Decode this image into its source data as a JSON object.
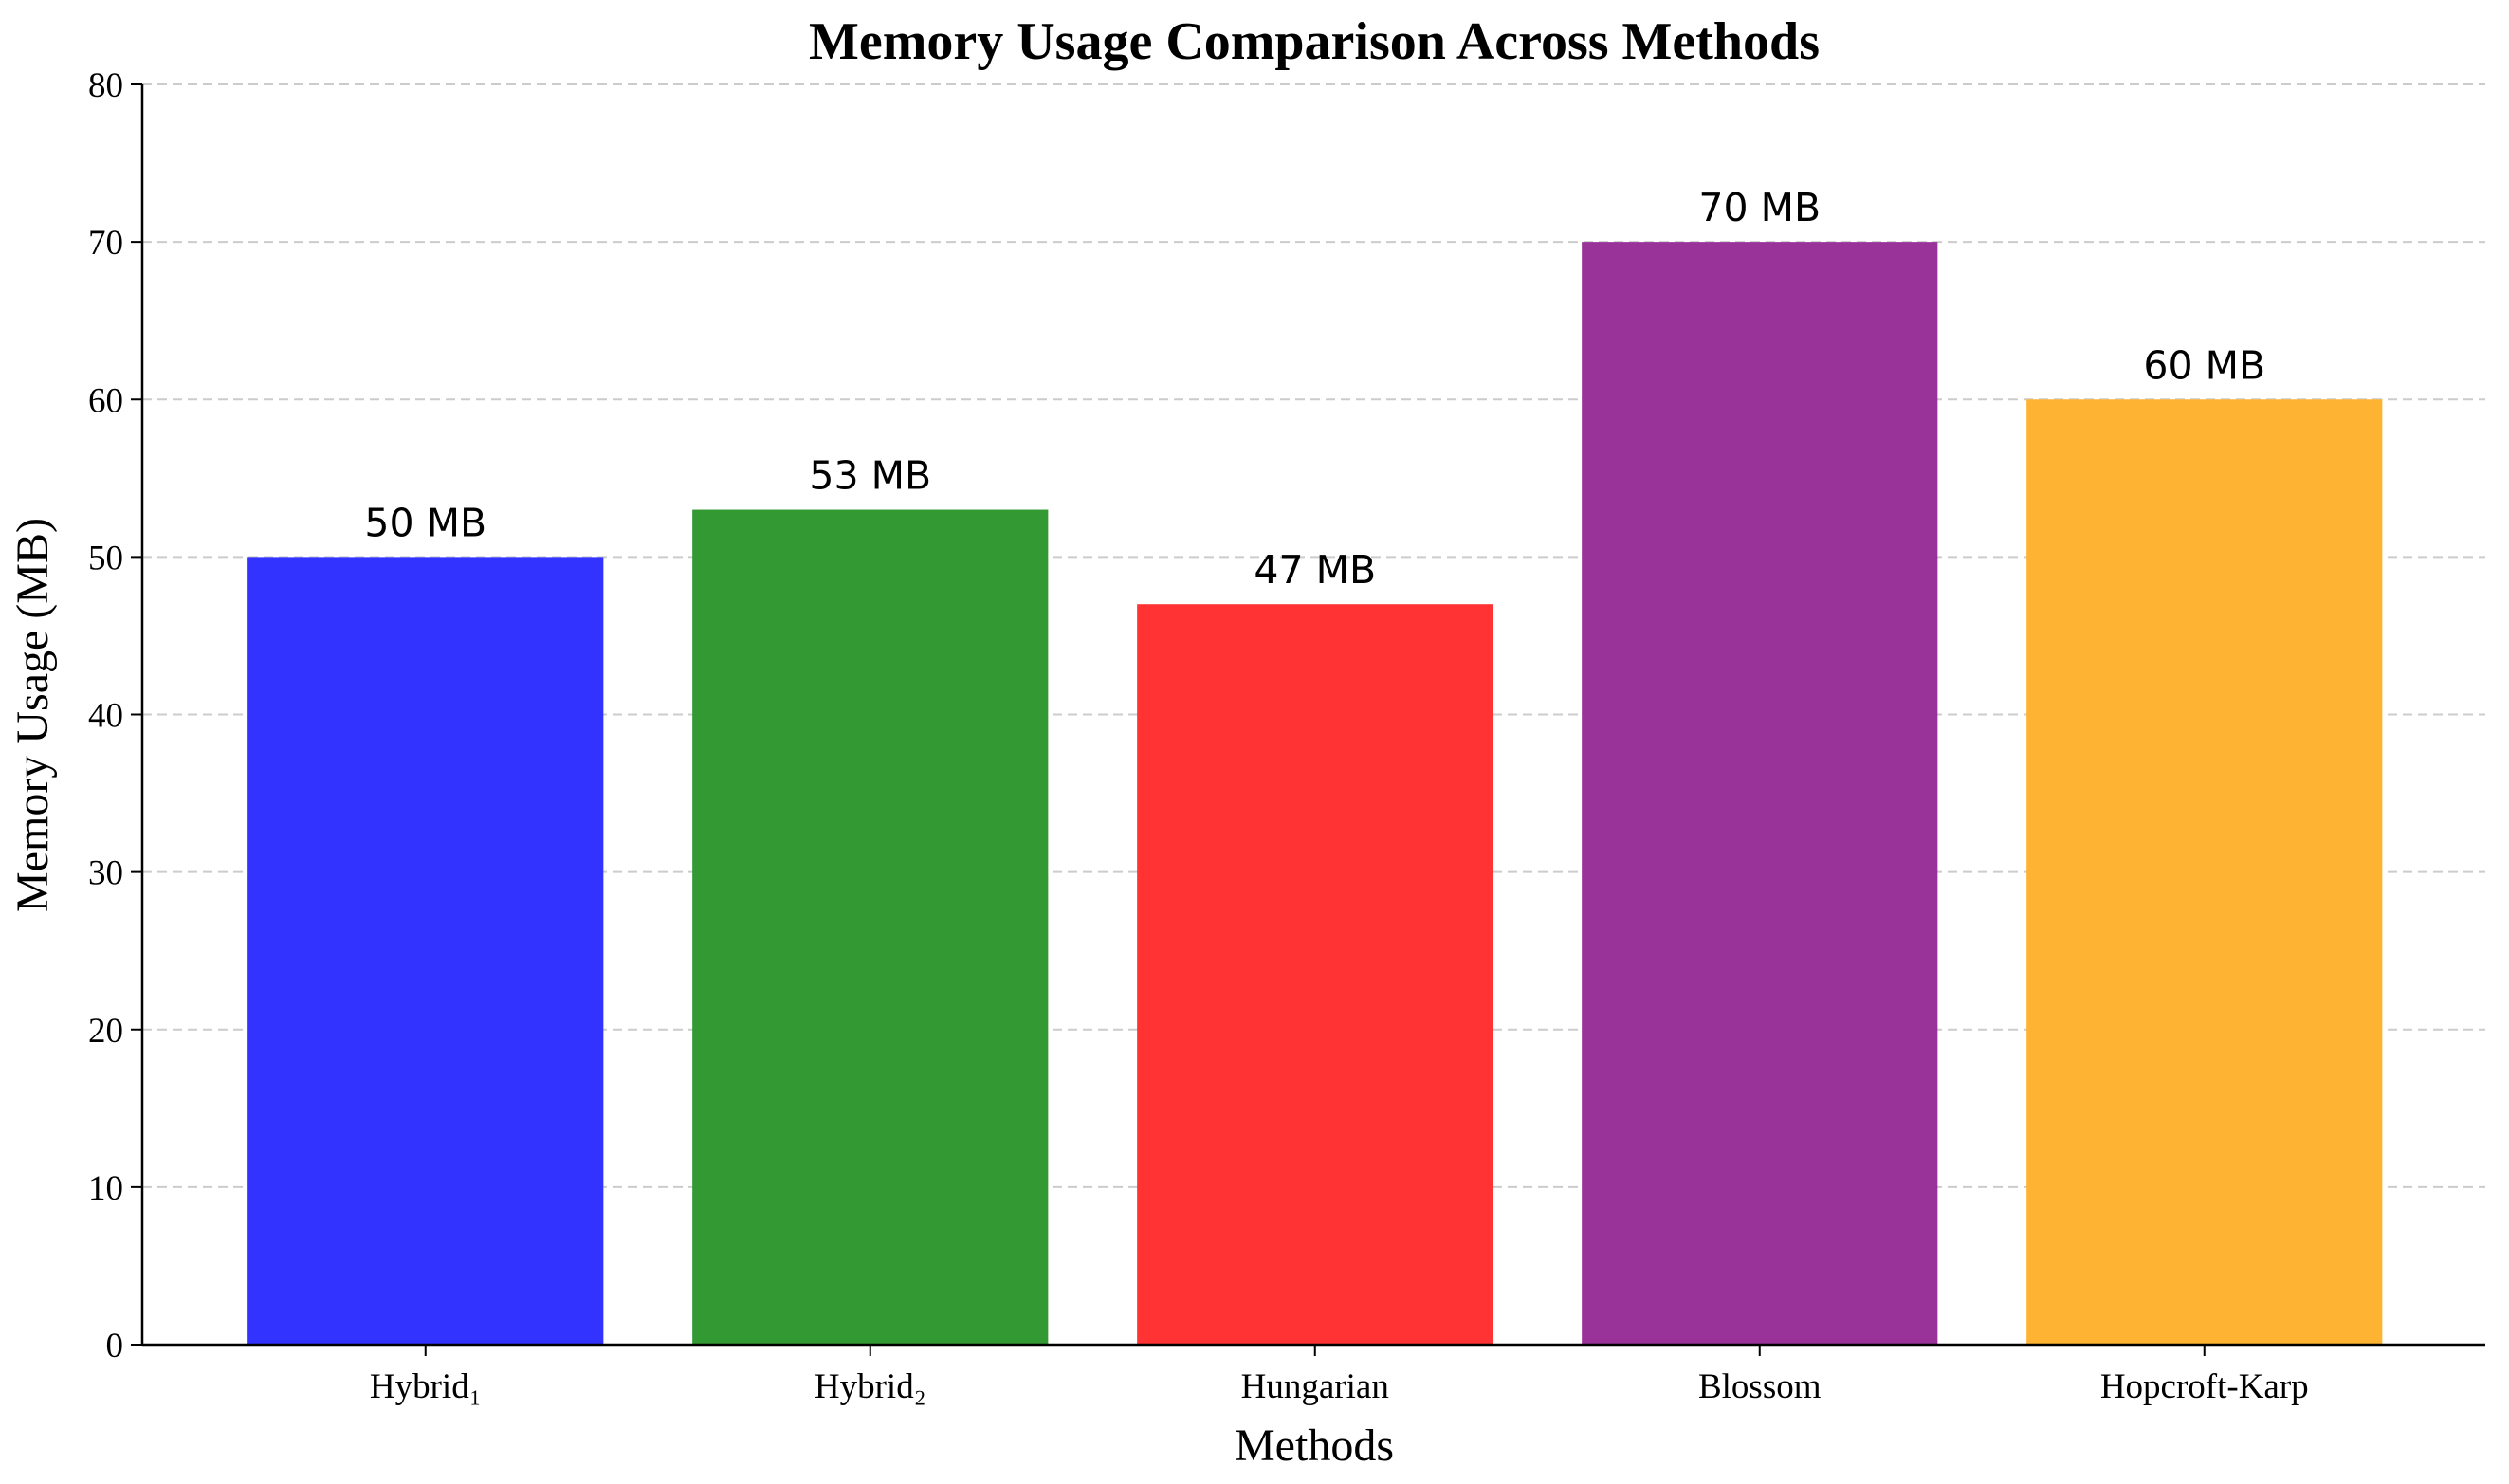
{
  "chart_data": {
    "type": "bar",
    "title": "Memory Usage Comparison Across Methods",
    "xlabel": "Methods",
    "ylabel": "Memory Usage (MB)",
    "categories": [
      "Hybrid₁",
      "Hybrid₂",
      "Hungarian",
      "Blossom",
      "Hopcroft-Karp"
    ],
    "values": [
      50,
      53,
      47,
      70,
      60
    ],
    "value_labels": [
      "50 MB",
      "53 MB",
      "47 MB",
      "70 MB",
      "60 MB"
    ],
    "colors": [
      "#3333ff",
      "#339933",
      "#ff3333",
      "#993399",
      "#ffb333"
    ],
    "ylim": [
      0,
      80
    ],
    "yticks": [
      0,
      10,
      20,
      30,
      40,
      50,
      60,
      70,
      80
    ],
    "grid": true
  }
}
